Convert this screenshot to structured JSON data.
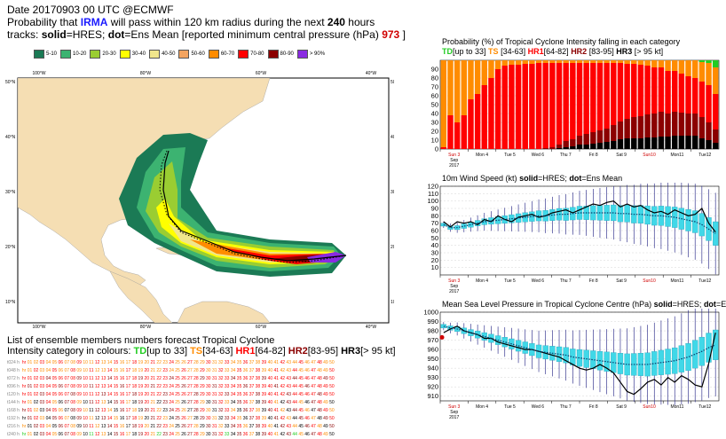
{
  "header": {
    "line1": "Date 20170903 00 UTC   @ECMWF",
    "line2_a": "Probability that",
    "storm": "IRMA",
    "line2_b": "will pass within 120 km radius during the next",
    "hours": "240",
    "line2_c": "hours",
    "line3_a": "tracks:",
    "solid": "solid",
    "line3_b": "=HRES;",
    "dot": "dot",
    "line3_c": "=Ens Mean [reported minimum central pressure (hPa)",
    "pressure": "973",
    "line3_d": "]"
  },
  "prob_legend": [
    {
      "label": "5-10",
      "color": "#1b7a55"
    },
    {
      "label": "10-20",
      "color": "#3cb371"
    },
    {
      "label": "20-30",
      "color": "#9acd32"
    },
    {
      "label": "30-40",
      "color": "#ffff00"
    },
    {
      "label": "40-50",
      "color": "#f0e68c"
    },
    {
      "label": "50-60",
      "color": "#f4a460"
    },
    {
      "label": "60-70",
      "color": "#ff8c00"
    },
    {
      "label": "70-80",
      "color": "#ff0000"
    },
    {
      "label": "80-90",
      "color": "#8b0000"
    },
    {
      "label": "> 90%",
      "color": "#8a2be2"
    }
  ],
  "map": {
    "lon_labels": [
      "100°W",
      "80°W",
      "60°W",
      "40°W"
    ],
    "lat_labels": [
      "50°N",
      "40°N",
      "30°N",
      "20°N",
      "10°N"
    ],
    "ocean_color": "#ffffff",
    "land_color": "#f5deb3"
  },
  "ensemble": {
    "title": "List of ensemble members numbers forecast Tropical Cyclone",
    "intensity_a": "Intensity category in colours:",
    "categories": [
      {
        "code": "TD",
        "range": "[up to 33]",
        "color": "#22cc22"
      },
      {
        "code": "TS",
        "range": "[34-63]",
        "color": "#ff8c00"
      },
      {
        "code": "HR1",
        "range": "[64-82]",
        "color": "#ff0000"
      },
      {
        "code": "HR2",
        "range": "[83-95]",
        "color": "#8b0000"
      },
      {
        "code": "HR3",
        "range": "[> 95 kt]",
        "color": "#000000"
      }
    ],
    "row_labels": [
      "t024 h",
      "t048 h",
      "t072 h",
      "t096 h",
      "t120 h",
      "t144 h",
      "t168 h",
      "t192 h",
      "t216 h",
      "t240 h"
    ]
  },
  "panel_titles": {
    "prob": "Probability (%) of Tropical Cyclone Intensity falling in each category",
    "prob_cats_td": "TD",
    "prob_cats_td_r": "[up to 33]",
    "prob_cats_ts": "TS",
    "prob_cats_ts_r": "[34-63]",
    "prob_cats_hr1": "HR1",
    "prob_cats_hr1_r": "[64-82]",
    "prob_cats_hr2": "HR2",
    "prob_cats_hr2_r": "[83-95]",
    "prob_cats_hr3": "HR3",
    "prob_cats_hr3_r": "[> 95 kt]",
    "wind_a": "10m Wind Speed (kt)",
    "wind_solid": "solid",
    "wind_b": "=HRES;",
    "wind_dot": "dot",
    "wind_c": "=Ens Mean",
    "mslp_a": "Mean Sea Level Pressure in Tropical Cyclone Centre (hPa)",
    "mslp_solid": "solid",
    "mslp_b": "=HRES;",
    "mslp_dot": "dot",
    "mslp_c": "=Ens Mean"
  },
  "day_labels": [
    "Sun 3",
    "Mon 4",
    "Tue 5",
    "Wed 6",
    "Thu 7",
    "Fri 8",
    "Sat 9",
    "Sun10",
    "Mon11",
    "Tue12"
  ],
  "day_sub": [
    "Sep",
    "2017"
  ],
  "chart_data": [
    {
      "type": "bar",
      "title": "Probability (%) of Tropical Cyclone Intensity falling in each category",
      "ylim": [
        0,
        100
      ],
      "yticks": [
        0,
        10,
        20,
        30,
        40,
        50,
        60,
        70,
        80,
        90
      ],
      "categories_count": 41,
      "series": [
        {
          "name": "TD",
          "color": "#22cc22",
          "values": [
            0,
            0,
            0,
            0,
            0,
            0,
            0,
            0,
            0,
            0,
            0,
            0,
            0,
            0,
            0,
            0,
            0,
            0,
            0,
            0,
            0,
            0,
            0,
            0,
            0,
            0,
            0,
            0,
            0,
            0,
            0,
            0,
            0,
            0,
            0,
            0,
            0,
            0,
            2,
            3,
            8
          ]
        },
        {
          "name": "TS",
          "color": "#ff8c00",
          "values": [
            98,
            62,
            70,
            62,
            44,
            38,
            28,
            20,
            10,
            6,
            5,
            5,
            4,
            4,
            3,
            3,
            3,
            3,
            3,
            3,
            3,
            3,
            3,
            3,
            3,
            3,
            3,
            4,
            4,
            5,
            6,
            8,
            8,
            12,
            12,
            15,
            18,
            20,
            22,
            25,
            30
          ]
        },
        {
          "name": "HR1",
          "color": "#ff0000",
          "values": [
            2,
            38,
            30,
            38,
            56,
            62,
            72,
            80,
            90,
            94,
            95,
            95,
            96,
            96,
            97,
            96,
            95,
            92,
            88,
            86,
            82,
            80,
            78,
            76,
            74,
            70,
            66,
            62,
            60,
            58,
            55,
            52,
            50,
            48,
            46,
            44,
            42,
            40,
            40,
            42,
            40
          ]
        },
        {
          "name": "HR2",
          "color": "#8b0000",
          "values": [
            0,
            0,
            0,
            0,
            0,
            0,
            0,
            0,
            0,
            0,
            0,
            0,
            0,
            0,
            0,
            1,
            2,
            4,
            7,
            8,
            10,
            12,
            13,
            14,
            15,
            18,
            20,
            22,
            24,
            25,
            26,
            27,
            28,
            26,
            27,
            26,
            25,
            25,
            24,
            20,
            15
          ]
        },
        {
          "name": "HR3",
          "color": "#000000",
          "values": [
            0,
            0,
            0,
            0,
            0,
            0,
            0,
            0,
            0,
            0,
            0,
            0,
            0,
            0,
            0,
            0,
            0,
            1,
            2,
            3,
            5,
            5,
            6,
            7,
            8,
            9,
            11,
            12,
            12,
            12,
            13,
            13,
            14,
            14,
            15,
            15,
            15,
            15,
            12,
            10,
            7
          ]
        }
      ]
    },
    {
      "type": "line",
      "title": "10m Wind Speed (kt)",
      "ylim": [
        0,
        120
      ],
      "yticks": [
        10,
        20,
        30,
        40,
        50,
        60,
        70,
        80,
        90,
        100,
        110,
        120
      ],
      "series": [
        {
          "name": "HRES",
          "values": [
            72,
            65,
            72,
            70,
            72,
            68,
            75,
            72,
            80,
            75,
            72,
            78,
            80,
            82,
            78,
            80,
            84,
            86,
            88,
            84,
            88,
            92,
            96,
            94,
            98,
            100,
            92,
            96,
            92,
            94,
            88,
            84,
            86,
            82,
            88,
            84,
            80,
            82,
            90,
            70,
            58
          ]
        },
        {
          "name": "Ens Mean",
          "values": [
            68,
            64,
            64,
            66,
            68,
            70,
            72,
            73,
            74,
            75,
            76,
            77,
            78,
            79,
            80,
            80,
            81,
            82,
            82,
            83,
            84,
            84,
            84,
            84,
            84,
            84,
            83,
            83,
            82,
            82,
            81,
            80,
            80,
            79,
            78,
            76,
            74,
            72,
            68,
            62,
            56
          ]
        }
      ]
    },
    {
      "type": "line",
      "title": "Mean Sea Level Pressure in Tropical Cyclone Centre (hPa)",
      "ylim": [
        905,
        1000
      ],
      "yticks": [
        910,
        920,
        930,
        940,
        950,
        960,
        970,
        980,
        990,
        1000
      ],
      "series": [
        {
          "name": "HRES",
          "values": [
            978,
            982,
            985,
            980,
            978,
            976,
            972,
            972,
            968,
            966,
            964,
            962,
            960,
            960,
            958,
            956,
            954,
            952,
            948,
            944,
            940,
            938,
            940,
            944,
            940,
            935,
            925,
            915,
            912,
            918,
            925,
            928,
            922,
            930,
            925,
            932,
            928,
            922,
            920,
            945,
            978
          ]
        },
        {
          "name": "Ens Mean",
          "values": [
            985,
            983,
            982,
            980,
            978,
            976,
            974,
            972,
            970,
            968,
            966,
            964,
            962,
            960,
            958,
            957,
            956,
            955,
            954,
            952,
            951,
            950,
            949,
            948,
            947,
            946,
            945,
            944,
            944,
            944,
            944,
            945,
            946,
            947,
            948,
            950,
            952,
            955,
            958,
            962,
            965
          ]
        }
      ]
    }
  ]
}
